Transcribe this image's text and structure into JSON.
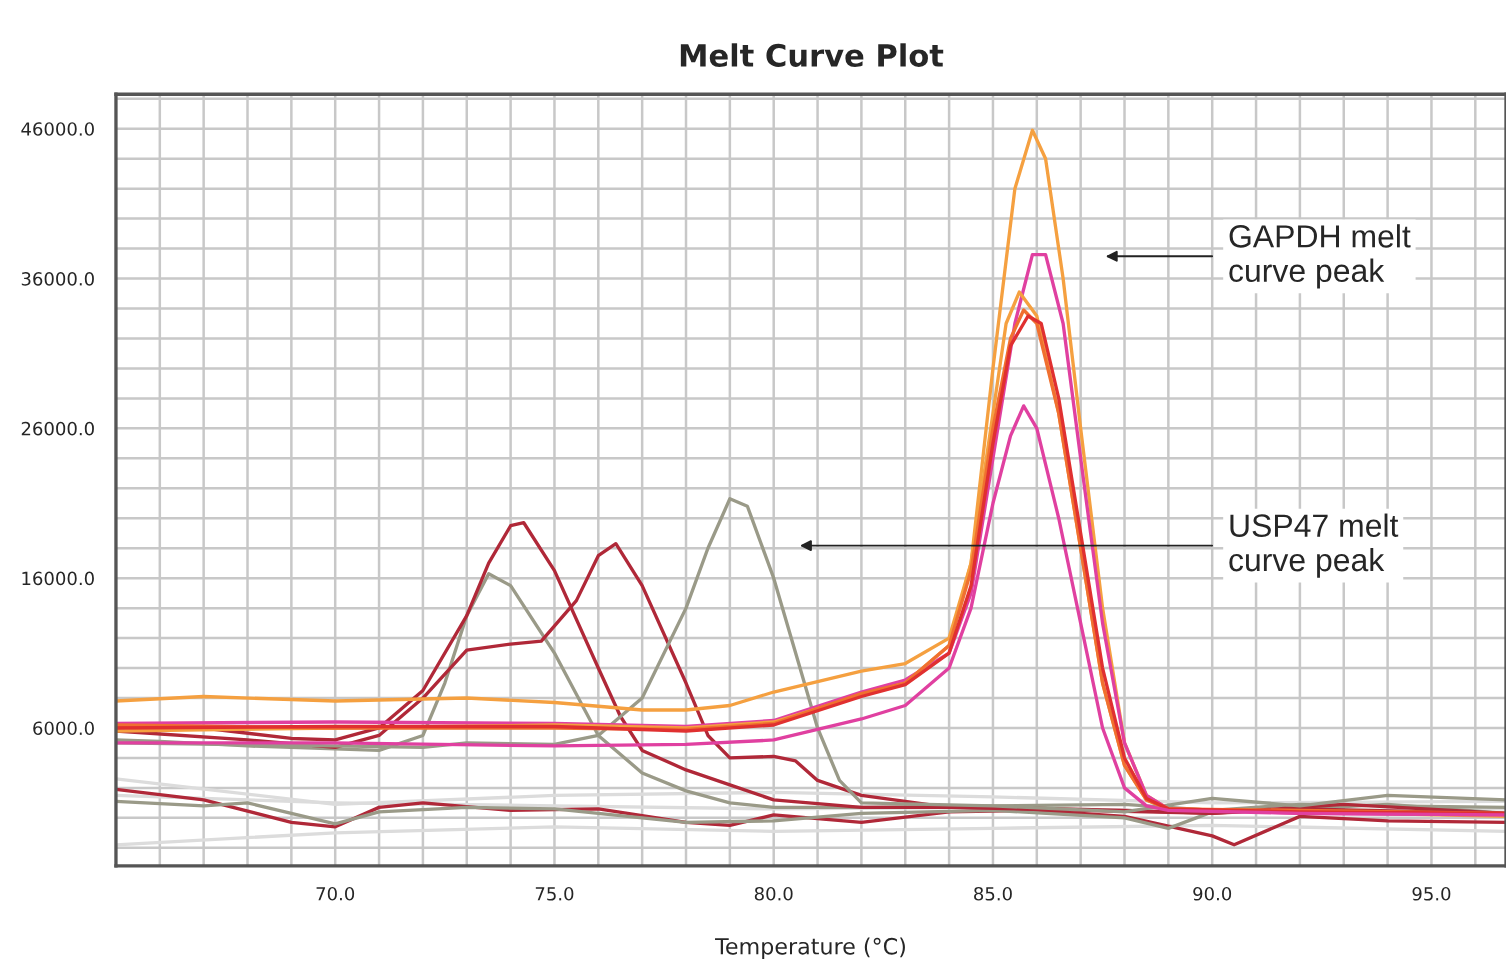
{
  "chart_data": {
    "type": "line",
    "title": "Melt Curve Plot",
    "xlabel": "Temperature (°C)",
    "xlim": [
      65,
      96.7
    ],
    "ylim": [
      -3200,
      48300
    ],
    "xticks": [
      {
        "value": 66,
        "label": null
      },
      {
        "value": 67,
        "label": null
      },
      {
        "value": 68,
        "label": null
      },
      {
        "value": 69,
        "label": null
      },
      {
        "value": 70,
        "label": "70.0"
      },
      {
        "value": 71,
        "label": null
      },
      {
        "value": 72,
        "label": null
      },
      {
        "value": 73,
        "label": null
      },
      {
        "value": 74,
        "label": null
      },
      {
        "value": 75,
        "label": "75.0"
      },
      {
        "value": 76,
        "label": null
      },
      {
        "value": 77,
        "label": null
      },
      {
        "value": 78,
        "label": null
      },
      {
        "value": 79,
        "label": null
      },
      {
        "value": 80,
        "label": "80.0"
      },
      {
        "value": 81,
        "label": null
      },
      {
        "value": 82,
        "label": null
      },
      {
        "value": 83,
        "label": null
      },
      {
        "value": 84,
        "label": null
      },
      {
        "value": 85,
        "label": "85.0"
      },
      {
        "value": 86,
        "label": null
      },
      {
        "value": 87,
        "label": null
      },
      {
        "value": 88,
        "label": null
      },
      {
        "value": 89,
        "label": null
      },
      {
        "value": 90,
        "label": "90.0"
      },
      {
        "value": 91,
        "label": null
      },
      {
        "value": 92,
        "label": null
      },
      {
        "value": 93,
        "label": null
      },
      {
        "value": 94,
        "label": null
      },
      {
        "value": 95,
        "label": "95.0"
      },
      {
        "value": 96,
        "label": null
      }
    ],
    "yticks": [
      {
        "value": -2000,
        "label": null
      },
      {
        "value": 0,
        "label": null
      },
      {
        "value": 2000,
        "label": null
      },
      {
        "value": 4000,
        "label": null
      },
      {
        "value": 6000,
        "label": "6000.0"
      },
      {
        "value": 8000,
        "label": null
      },
      {
        "value": 10000,
        "label": null
      },
      {
        "value": 12000,
        "label": null
      },
      {
        "value": 14000,
        "label": null
      },
      {
        "value": 16000,
        "label": "16000.0"
      },
      {
        "value": 18000,
        "label": null
      },
      {
        "value": 20000,
        "label": null
      },
      {
        "value": 22000,
        "label": null
      },
      {
        "value": 24000,
        "label": null
      },
      {
        "value": 26000,
        "label": "26000.0"
      },
      {
        "value": 28000,
        "label": null
      },
      {
        "value": 30000,
        "label": null
      },
      {
        "value": 32000,
        "label": null
      },
      {
        "value": 34000,
        "label": null
      },
      {
        "value": 36000,
        "label": "36000.0"
      },
      {
        "value": 38000,
        "label": null
      },
      {
        "value": 40000,
        "label": null
      },
      {
        "value": 42000,
        "label": null
      },
      {
        "value": 44000,
        "label": null
      },
      {
        "value": 46000,
        "label": "46000.0"
      },
      {
        "value": 48000,
        "label": null
      }
    ],
    "grid": true,
    "annotations": [
      "GAPDH melt\ncurve peak",
      "USP47 melt\ncurve peak"
    ],
    "series": [
      {
        "color": "#dcdcdc",
        "x": [
          65,
          70,
          75,
          80,
          85,
          90,
          96.7
        ],
        "values": [
          1500,
          1000,
          800,
          600,
          700,
          400,
          600
        ]
      },
      {
        "color": "#dcdcdc",
        "x": [
          65,
          70,
          75,
          80,
          85,
          90,
          96.7
        ],
        "values": [
          -1800,
          -1000,
          -600,
          -900,
          -700,
          -500,
          -900
        ]
      },
      {
        "color": "#dcdcdc",
        "x": [
          65,
          70,
          75,
          80,
          85,
          90,
          96.7
        ],
        "values": [
          2600,
          900,
          1500,
          1700,
          1400,
          1000,
          1100
        ]
      },
      {
        "color": "#b02838",
        "x": [
          65,
          67,
          69,
          70,
          71,
          72,
          74,
          76,
          78,
          79,
          80,
          82,
          84,
          86,
          88,
          90,
          90.5,
          92,
          94,
          96.7
        ],
        "values": [
          1900,
          1200,
          -300,
          -600,
          700,
          1000,
          500,
          600,
          -300,
          -500,
          200,
          -300,
          400,
          500,
          100,
          -1200,
          -1800,
          100,
          -200,
          -300
        ]
      },
      {
        "color": "#9a9a88",
        "x": [
          65,
          67,
          68,
          69,
          70,
          71,
          73,
          75,
          78,
          80,
          82,
          85,
          88,
          89,
          90,
          92,
          94,
          96.7
        ],
        "values": [
          1100,
          800,
          1000,
          300,
          -400,
          400,
          700,
          600,
          -300,
          -200,
          300,
          500,
          0,
          -700,
          400,
          600,
          900,
          300
        ]
      },
      {
        "color": "#9a9a88",
        "x": [
          65,
          66,
          68,
          70,
          71,
          72,
          72.5,
          73,
          73.5,
          74,
          75,
          76,
          77,
          78,
          79,
          80,
          82,
          85,
          88,
          90,
          92,
          94,
          96.7
        ],
        "values": [
          5200,
          5100,
          4800,
          4600,
          4500,
          5500,
          9000,
          13500,
          16300,
          15500,
          11000,
          5500,
          3000,
          1800,
          1000,
          700,
          700,
          800,
          900,
          500,
          900,
          800,
          700
        ]
      },
      {
        "color": "#b02838",
        "x": [
          65,
          67,
          69,
          70,
          71,
          72,
          73,
          73.5,
          74,
          74.3,
          75,
          76,
          76.5,
          77,
          78,
          79,
          80,
          82,
          85,
          88,
          90,
          92,
          96.7
        ],
        "values": [
          6200,
          6000,
          5300,
          5200,
          6000,
          8500,
          13500,
          17000,
          19500,
          19700,
          16500,
          10000,
          6800,
          4500,
          3200,
          2200,
          1200,
          700,
          700,
          500,
          300,
          600,
          300
        ]
      },
      {
        "color": "#b02838",
        "x": [
          65,
          68,
          70,
          71,
          72,
          73,
          74,
          74.7,
          75.5,
          76,
          76.4,
          77,
          78,
          78.5,
          79,
          80,
          80.5,
          81,
          82,
          84,
          87,
          90,
          93,
          96.7
        ],
        "values": [
          5800,
          5200,
          4700,
          5500,
          8000,
          11200,
          11600,
          11800,
          14500,
          17500,
          18300,
          15500,
          9000,
          5500,
          4000,
          4100,
          3800,
          2500,
          1500,
          700,
          500,
          300,
          900,
          300
        ]
      },
      {
        "color": "#9a9a88",
        "x": [
          65,
          70,
          72,
          73,
          75,
          76,
          77,
          78,
          78.5,
          79,
          79.4,
          80,
          80.5,
          81,
          81.5,
          82,
          85,
          88,
          90,
          92,
          94,
          96.7
        ],
        "values": [
          5000,
          4800,
          4700,
          5000,
          4900,
          5500,
          8000,
          14000,
          18000,
          21300,
          20800,
          16000,
          11000,
          6000,
          2500,
          1000,
          800,
          400,
          1300,
          800,
          1500,
          1200
        ]
      },
      {
        "color": "#f5a040",
        "x": [
          65,
          67,
          70,
          73,
          75,
          77,
          78,
          79,
          80,
          82,
          83,
          84,
          84.5,
          85,
          85.5,
          85.9,
          86.2,
          86.6,
          87,
          87.5,
          88,
          88.5,
          89,
          92,
          96.7
        ],
        "values": [
          7800,
          8100,
          7800,
          8000,
          7700,
          7200,
          7200,
          7500,
          8400,
          9800,
          10300,
          12000,
          17000,
          30000,
          42000,
          45900,
          44000,
          36000,
          26000,
          14000,
          5000,
          1500,
          600,
          400,
          100
        ]
      },
      {
        "color": "#e040a0",
        "x": [
          65,
          70,
          75,
          78,
          80,
          82,
          83,
          84,
          84.5,
          85,
          85.5,
          85.9,
          86.2,
          86.6,
          87,
          87.5,
          88,
          88.5,
          89,
          92,
          96.7
        ],
        "values": [
          6300,
          6400,
          6300,
          6100,
          6500,
          8400,
          9200,
          11000,
          15000,
          24000,
          33000,
          37600,
          37600,
          33000,
          24000,
          13000,
          5000,
          1500,
          600,
          300,
          200
        ]
      },
      {
        "color": "#f5a040",
        "x": [
          65,
          70,
          75,
          78,
          80,
          82,
          83,
          84,
          84.5,
          85,
          85.3,
          85.6,
          86,
          86.5,
          87,
          87.5,
          88,
          88.5,
          89,
          92,
          96.7
        ],
        "values": [
          5800,
          6000,
          6200,
          6000,
          6400,
          8200,
          9000,
          11500,
          17000,
          27000,
          33000,
          35100,
          33500,
          27000,
          18000,
          9000,
          3500,
          1200,
          600,
          400,
          200
        ]
      },
      {
        "color": "#f07030",
        "x": [
          65,
          70,
          75,
          78,
          80,
          82,
          83,
          84,
          84.5,
          85,
          85.4,
          85.7,
          86,
          86.5,
          87,
          87.5,
          88,
          88.5,
          89,
          92,
          96.7
        ],
        "values": [
          6200,
          6000,
          6000,
          5900,
          6300,
          8300,
          9000,
          11500,
          16500,
          26000,
          32000,
          33900,
          33000,
          27000,
          18000,
          9000,
          3500,
          1200,
          600,
          500,
          300
        ]
      },
      {
        "color": "#e03030",
        "x": [
          65,
          70,
          75,
          78,
          80,
          82,
          83,
          84,
          84.5,
          85,
          85.4,
          85.8,
          86.1,
          86.5,
          87,
          87.5,
          88,
          88.5,
          89,
          92,
          96.7
        ],
        "values": [
          6000,
          6100,
          6100,
          5800,
          6200,
          8100,
          8900,
          11000,
          15500,
          25000,
          31500,
          33500,
          33000,
          28000,
          19000,
          10000,
          4000,
          1300,
          600,
          400,
          300
        ]
      },
      {
        "color": "#e040a0",
        "x": [
          65,
          70,
          75,
          78,
          80,
          82,
          83,
          84,
          84.5,
          85,
          85.4,
          85.7,
          86,
          86.5,
          87,
          87.5,
          88,
          88.5,
          89,
          92,
          96.7
        ],
        "values": [
          5000,
          5000,
          4800,
          4900,
          5200,
          6600,
          7500,
          10000,
          14000,
          21000,
          25500,
          27500,
          26000,
          20000,
          13000,
          6000,
          2000,
          800,
          500,
          300,
          200
        ]
      }
    ]
  }
}
